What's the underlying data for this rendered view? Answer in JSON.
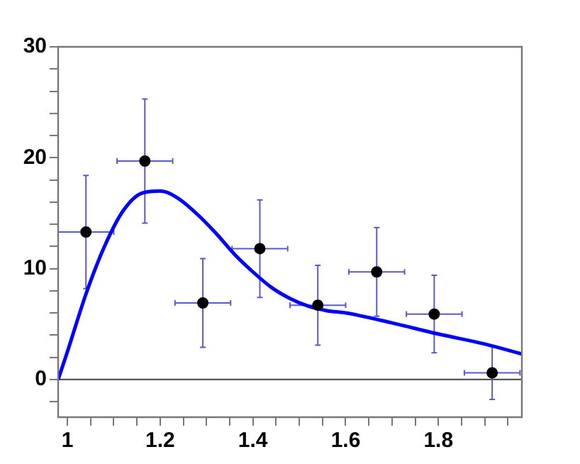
{
  "chart_data": {
    "type": "scatter",
    "xlim": [
      0.98,
      1.98
    ],
    "xticks": [
      {
        "value": 1,
        "label": "1"
      },
      {
        "value": 1.05,
        "label": null
      },
      {
        "value": 1.1,
        "label": null
      },
      {
        "value": 1.15,
        "label": null
      },
      1.2,
      {
        "value": 1.25,
        "label": null
      },
      {
        "value": 1.3,
        "label": null
      },
      {
        "value": 1.35,
        "label": null
      },
      1.4,
      {
        "value": 1.45,
        "label": null
      },
      {
        "value": 1.5,
        "label": null
      },
      {
        "value": 1.55,
        "label": null
      },
      1.6,
      {
        "value": 1.65,
        "label": null
      },
      {
        "value": 1.7,
        "label": null
      },
      {
        "value": 1.75,
        "label": null
      },
      1.8,
      {
        "value": 1.85,
        "label": null
      },
      {
        "value": 1.9,
        "label": null
      },
      {
        "value": 1.95,
        "label": null
      }
    ],
    "ylim": [
      -3.4,
      30
    ],
    "yticks": [
      {
        "value": -2,
        "label": null
      },
      0,
      {
        "value": 2,
        "label": null
      },
      {
        "value": 4,
        "label": null
      },
      {
        "value": 6,
        "label": null
      },
      {
        "value": 8,
        "label": null
      },
      10,
      {
        "value": 12,
        "label": null
      },
      {
        "value": 14,
        "label": null
      },
      {
        "value": 16,
        "label": null
      },
      {
        "value": 18,
        "label": null
      },
      20,
      {
        "value": 22,
        "label": null
      },
      {
        "value": 24,
        "label": null
      },
      {
        "value": 26,
        "label": null
      },
      {
        "value": 28,
        "label": null
      },
      30
    ],
    "grid": false,
    "legend": false,
    "ref_lines": [
      {
        "axis": "y",
        "value": 0,
        "color": "#555555"
      }
    ],
    "series": [
      {
        "type": "scatter",
        "color": "#000000",
        "marker": "circle",
        "x": [
          1.04,
          1.167,
          1.292,
          1.415,
          1.54,
          1.667,
          1.791,
          1.916
        ],
        "values": [
          13.3,
          19.7,
          6.9,
          11.8,
          6.7,
          9.7,
          5.9,
          0.6
        ],
        "errors": [
          5.1,
          5.6,
          4,
          4.4,
          3.6,
          4,
          3.5,
          2.4
        ],
        "xerrors": [
          0.06,
          0.06,
          0.06,
          0.06,
          0.06,
          0.06,
          0.06,
          0.06
        ]
      },
      {
        "type": "line",
        "color": "#0000ff",
        "marker": "none",
        "x": [
          0.98,
          1.0,
          1.04,
          1.08,
          1.12,
          1.16,
          1.2,
          1.24,
          1.28,
          1.32,
          1.36,
          1.4,
          1.44,
          1.48,
          1.52,
          1.56,
          1.6,
          1.7,
          1.8,
          1.9,
          1.98
        ],
        "values": [
          0,
          2.5,
          7.7,
          12,
          15.2,
          16.8,
          17,
          16.3,
          14.9,
          13.2,
          11.3,
          9.7,
          8.3,
          7.3,
          6.6,
          6.2,
          6.0,
          5.1,
          4.1,
          3.2,
          2.3
        ]
      }
    ]
  }
}
